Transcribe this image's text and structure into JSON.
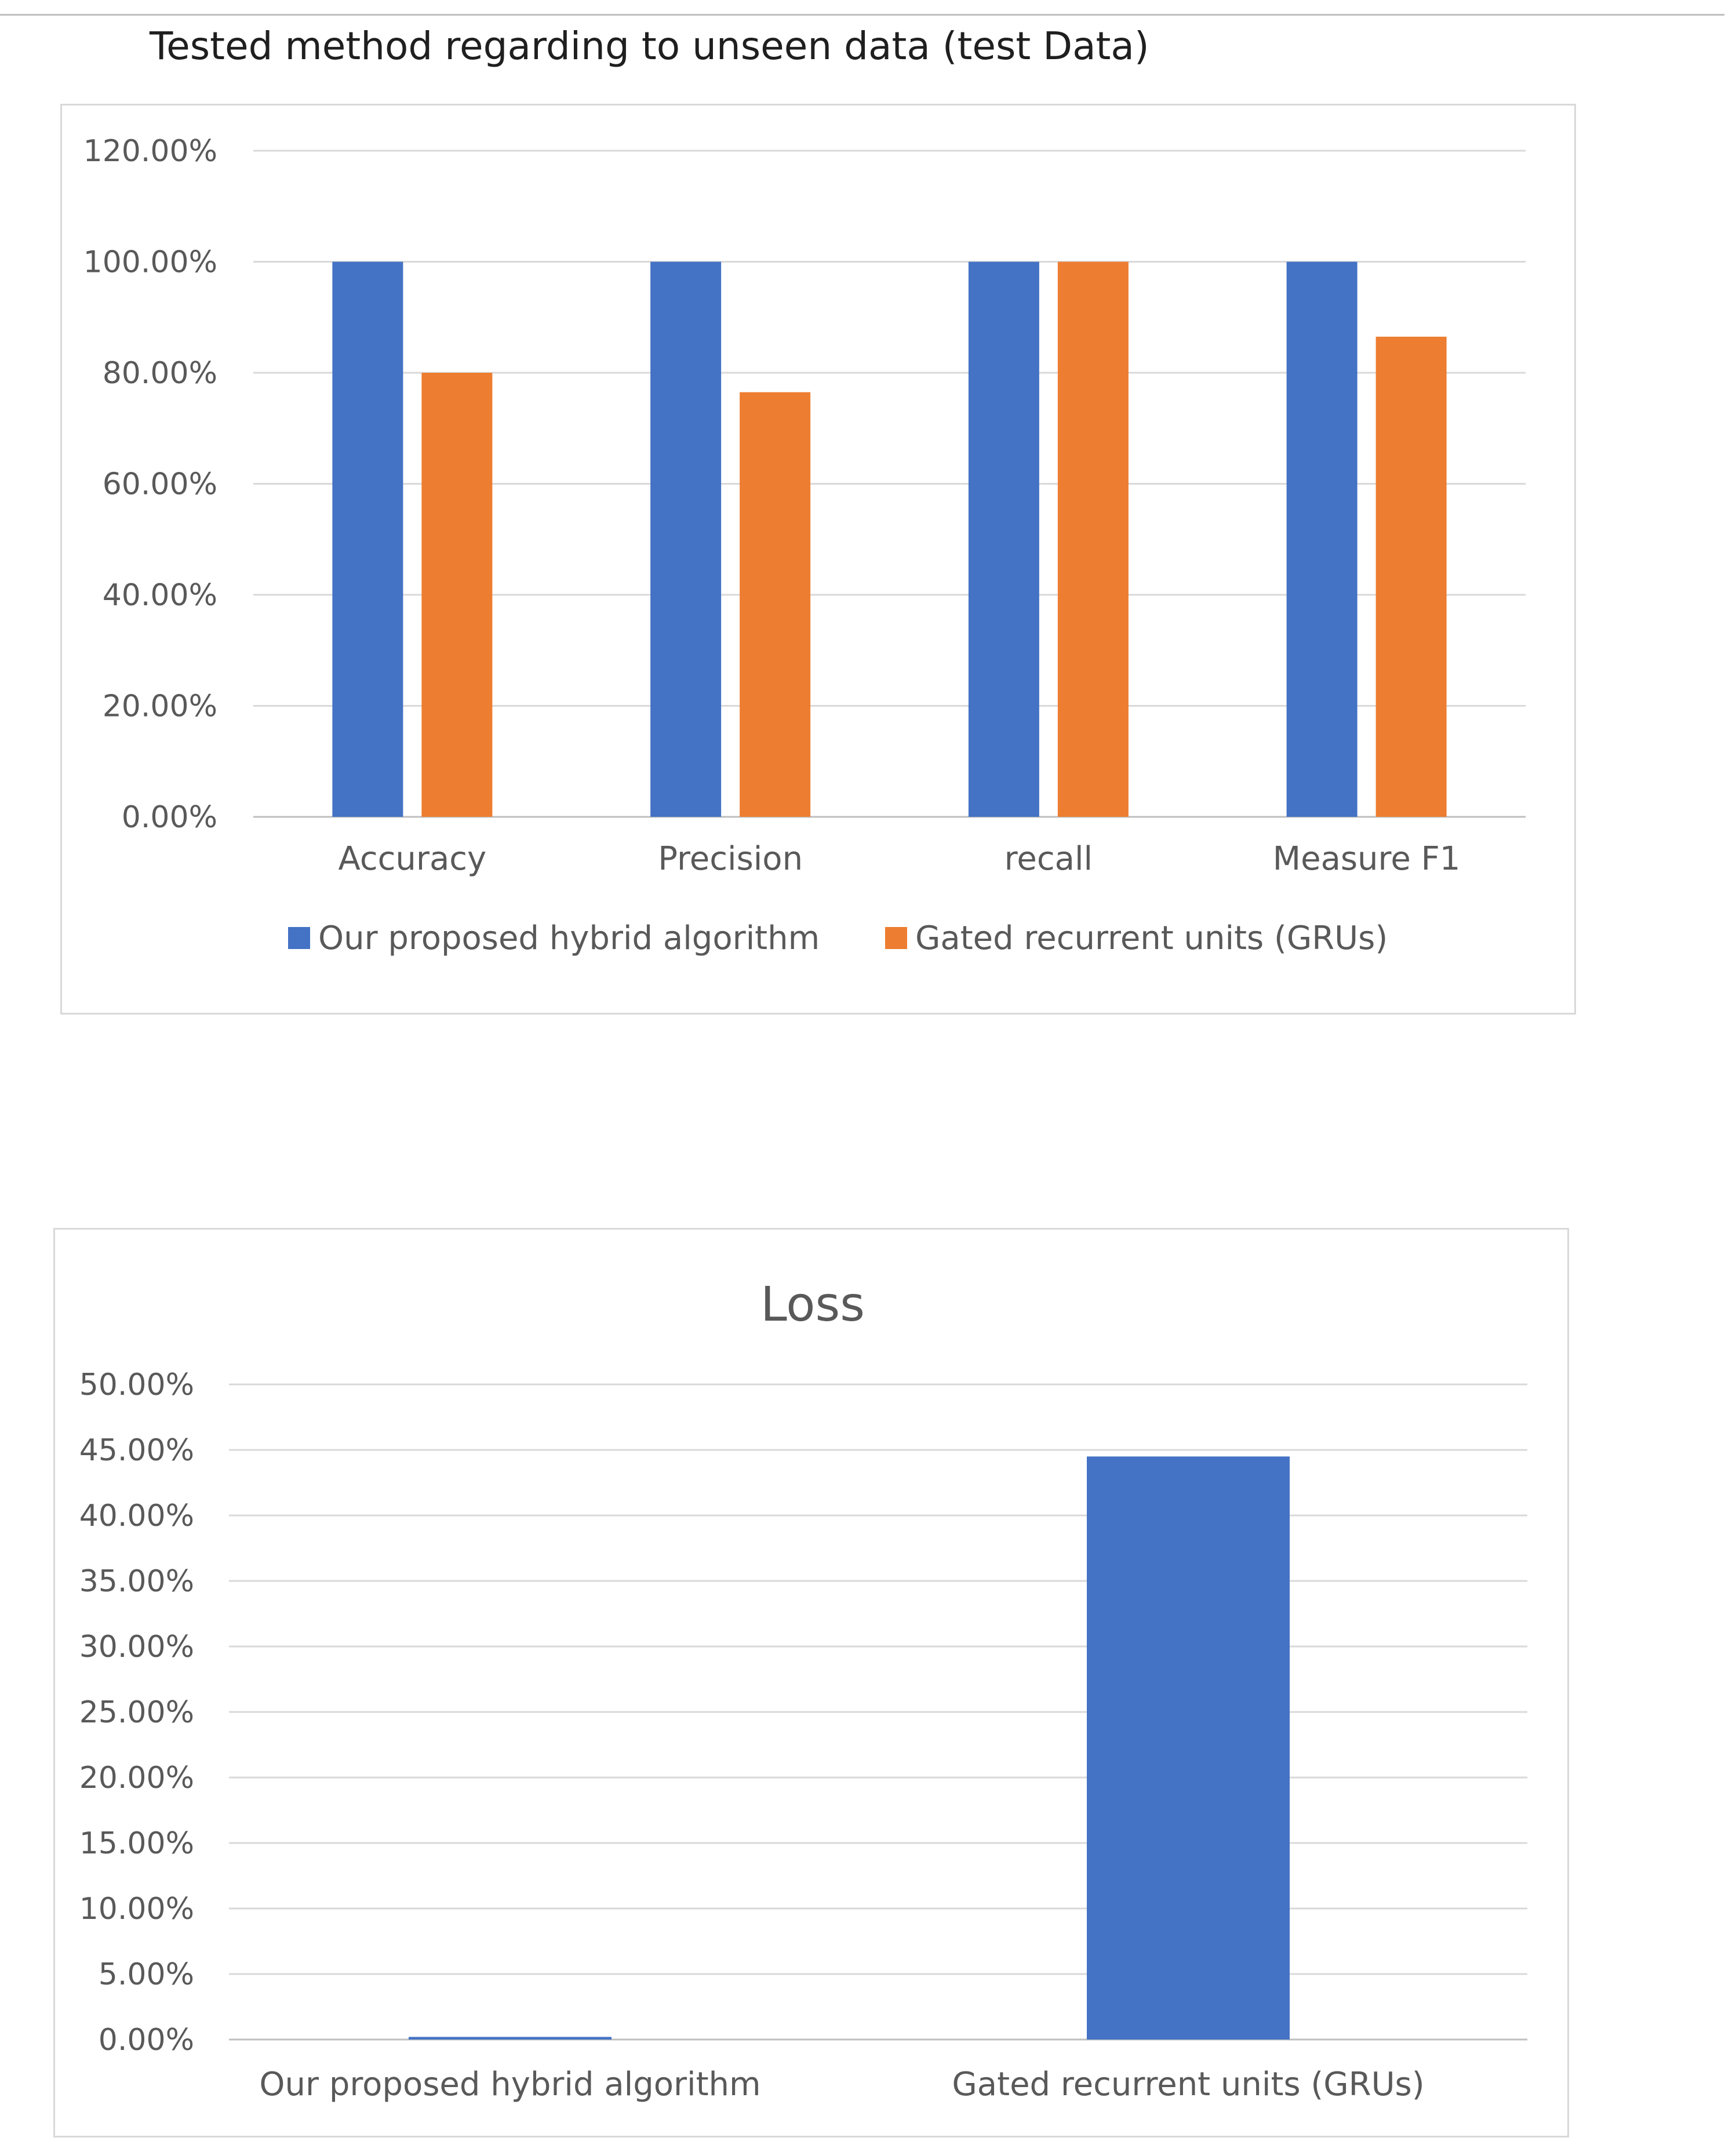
{
  "header": {
    "title": "Tested method regarding to unseen data (test Data)"
  },
  "colors": {
    "blue": "#4472C4",
    "orange": "#ED7D31",
    "grid": "#d9d9d9",
    "axis": "#bfbfbf"
  },
  "chart_data": [
    {
      "type": "bar",
      "title": "",
      "categories": [
        "Accuracy",
        "Precision",
        "recall",
        "Measure F1"
      ],
      "series": [
        {
          "name": "Our proposed hybrid algorithm",
          "color": "#4472C4",
          "values": [
            1.0,
            1.0,
            1.0,
            1.0
          ]
        },
        {
          "name": "Gated recurrent units (GRUs)",
          "color": "#ED7D31",
          "values": [
            0.8,
            0.765,
            1.0,
            0.865
          ]
        }
      ],
      "ylim": [
        0,
        1.2
      ],
      "yticks": [
        0,
        0.2,
        0.4,
        0.6,
        0.8,
        1.0,
        1.2
      ],
      "ytick_labels": [
        "0.00%",
        "20.00%",
        "40.00%",
        "60.00%",
        "80.00%",
        "100.00%",
        "120.00%"
      ],
      "xlabel": "",
      "ylabel": "",
      "grid": true,
      "legend": "bottom"
    },
    {
      "type": "bar",
      "title": "Loss",
      "categories": [
        "Our proposed hybrid algorithm",
        "Gated recurrent units (GRUs)"
      ],
      "series": [
        {
          "name": "Loss",
          "color": "#4472C4",
          "values": [
            0.002,
            0.445
          ]
        }
      ],
      "ylim": [
        0,
        0.5
      ],
      "yticks": [
        0,
        0.05,
        0.1,
        0.15,
        0.2,
        0.25,
        0.3,
        0.35,
        0.4,
        0.45,
        0.5
      ],
      "ytick_labels": [
        "0.00%",
        "5.00%",
        "10.00%",
        "15.00%",
        "20.00%",
        "25.00%",
        "30.00%",
        "35.00%",
        "40.00%",
        "45.00%",
        "50.00%"
      ],
      "xlabel": "",
      "ylabel": "",
      "grid": true,
      "legend": "none"
    }
  ]
}
